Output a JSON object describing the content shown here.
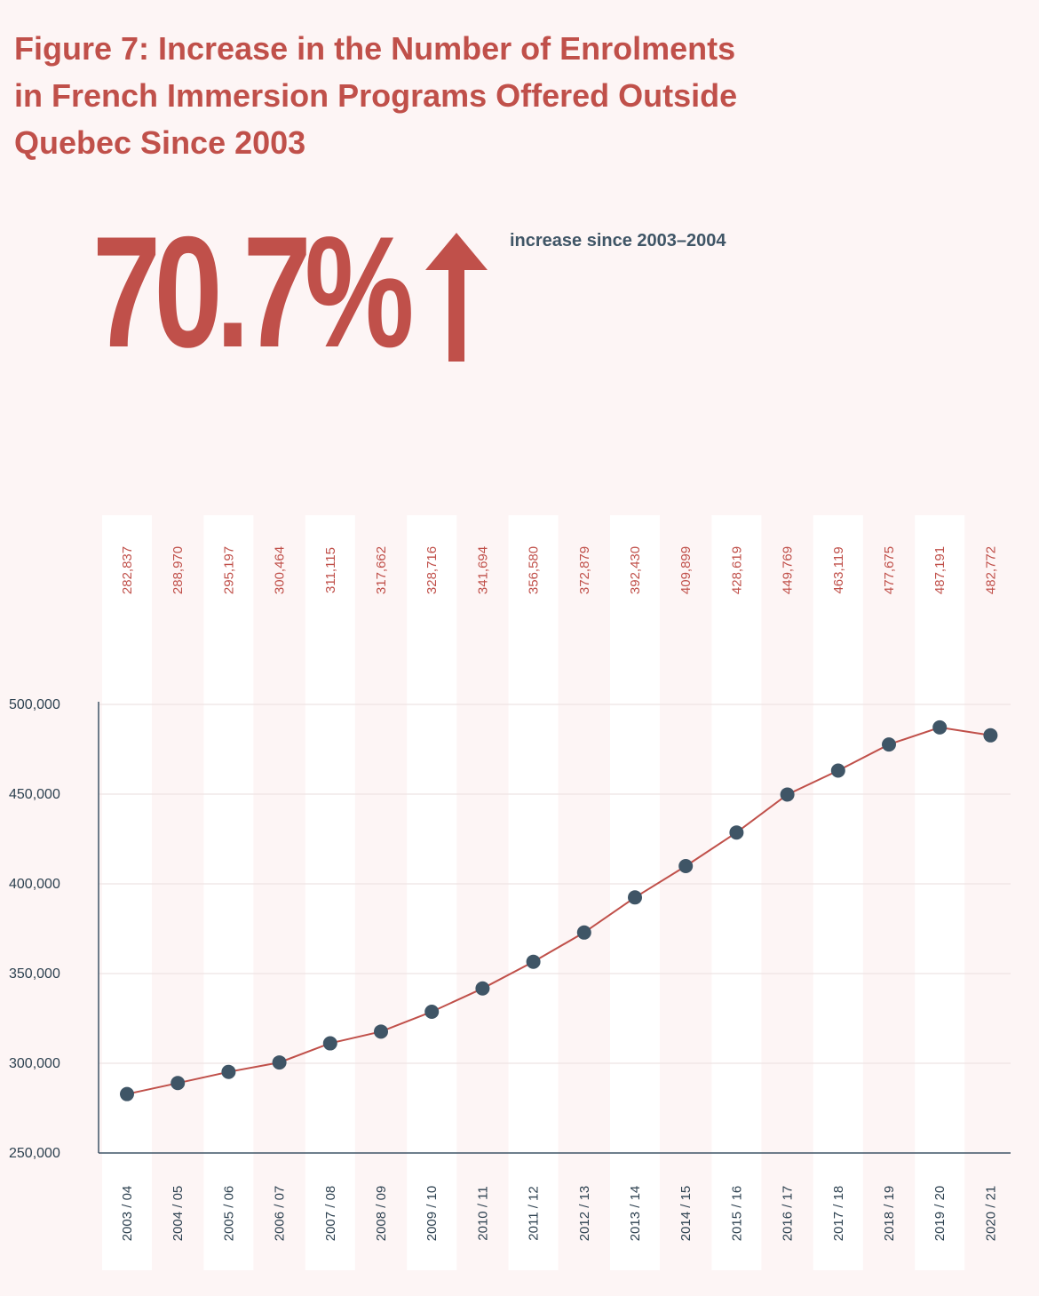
{
  "title_lines": [
    "Figure 7: Increase in the Number of Enrolments",
    "in French Immersion Programs Offered Outside",
    "Quebec Since 2003"
  ],
  "highlight": {
    "value": "70.7%",
    "caption": "increase since 2003–2004",
    "icon": "arrow-up-icon"
  },
  "colors": {
    "accent": "#c0504a",
    "marker": "#3f5566",
    "background": "#fdf5f5",
    "band": "#ffffff"
  },
  "chart_data": {
    "type": "line",
    "categories": [
      "2003 / 04",
      "2004 / 05",
      "2005 / 06",
      "2006 / 07",
      "2007 / 08",
      "2008 / 09",
      "2009 / 10",
      "2010 / 11",
      "2011 / 12",
      "2012 / 13",
      "2013 / 14",
      "2014 / 15",
      "2015 / 16",
      "2016 / 17",
      "2017 / 18",
      "2018 / 19",
      "2019 / 20",
      "2020 / 21"
    ],
    "values": [
      282837,
      288970,
      295197,
      300464,
      311115,
      317662,
      328716,
      341694,
      356580,
      372879,
      392430,
      409899,
      428619,
      449769,
      463119,
      477675,
      487191,
      482772
    ],
    "value_labels": [
      "282,837",
      "288,970",
      "295,197",
      "300,464",
      "311,115",
      "317,662",
      "328,716",
      "341,694",
      "356,580",
      "372,879",
      "392,430",
      "409,899",
      "428,619",
      "449,769",
      "463,119",
      "477,675",
      "487,191",
      "482,772"
    ],
    "yticks": [
      250000,
      300000,
      350000,
      400000,
      450000,
      500000
    ],
    "ytick_labels": [
      "250,000",
      "300,000",
      "350,000",
      "400,000",
      "450,000",
      "500,000"
    ],
    "ylim": [
      250000,
      500000
    ],
    "grid": true,
    "legend": "none"
  }
}
